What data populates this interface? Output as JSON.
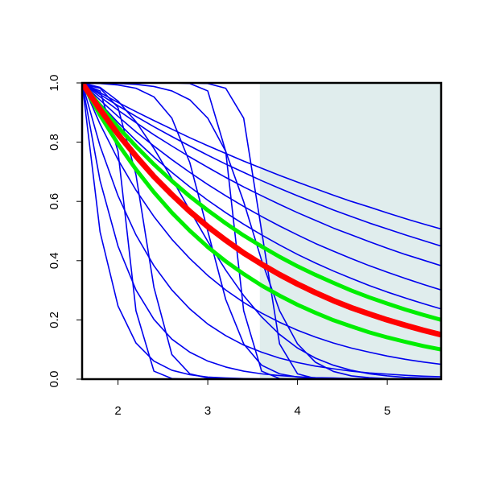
{
  "chart_data": {
    "type": "line",
    "x": [
      1.6,
      1.8,
      2.0,
      2.2,
      2.4,
      2.6,
      2.8,
      3.0,
      3.2,
      3.4,
      3.6,
      3.8,
      4.0,
      4.2,
      4.4,
      4.6,
      4.8,
      5.0,
      5.2,
      5.4,
      5.6
    ],
    "xlim": [
      1.6,
      5.6
    ],
    "ylim": [
      0,
      1
    ],
    "xticks": [
      2,
      3,
      4,
      5
    ],
    "yticks": [
      {
        "value": 0,
        "label": "0.0"
      },
      0.2,
      0.4,
      0.6,
      0.8,
      {
        "value": 1,
        "label": "1.0"
      }
    ],
    "shaded_region": {
      "x": [
        3.58,
        5.6
      ],
      "color": "#e0eded"
    },
    "series": [
      {
        "color": "#0000ee",
        "line_width": 1.6,
        "values": [
          1,
          0.967,
          0.934,
          0.903,
          0.873,
          0.844,
          0.815,
          0.788,
          0.762,
          0.736,
          0.712,
          0.688,
          0.665,
          0.643,
          0.621,
          0.6,
          0.581,
          0.561,
          0.542,
          0.524,
          0.507
        ]
      },
      {
        "color": "#0000ee",
        "line_width": 1.6,
        "values": [
          1,
          0.961,
          0.923,
          0.887,
          0.852,
          0.819,
          0.787,
          0.756,
          0.726,
          0.698,
          0.67,
          0.644,
          0.619,
          0.595,
          0.571,
          0.549,
          0.527,
          0.507,
          0.487,
          0.468,
          0.449
        ]
      },
      {
        "color": "#0000ee",
        "line_width": 1.6,
        "values": [
          1,
          0.953,
          0.908,
          0.866,
          0.825,
          0.787,
          0.75,
          0.715,
          0.681,
          0.649,
          0.619,
          0.59,
          0.562,
          0.536,
          0.51,
          0.487,
          0.464,
          0.442,
          0.421,
          0.402,
          0.383
        ]
      },
      {
        "color": "#0000ee",
        "line_width": 1.6,
        "values": [
          1,
          0.942,
          0.887,
          0.835,
          0.787,
          0.741,
          0.698,
          0.657,
          0.619,
          0.583,
          0.549,
          0.517,
          0.487,
          0.458,
          0.432,
          0.407,
          0.383,
          0.361,
          0.34,
          0.32,
          0.301
        ]
      },
      {
        "color": "#0000ee",
        "line_width": 1.6,
        "values": [
          1,
          0.931,
          0.866,
          0.806,
          0.75,
          0.698,
          0.649,
          0.604,
          0.562,
          0.523,
          0.487,
          0.453,
          0.421,
          0.392,
          0.365,
          0.34,
          0.316,
          0.294,
          0.274,
          0.255,
          0.237
        ]
      },
      {
        "color": "#0000ee",
        "line_width": 1.6,
        "values": [
          1,
          0.861,
          0.741,
          0.638,
          0.549,
          0.472,
          0.407,
          0.35,
          0.301,
          0.259,
          0.223,
          0.192,
          0.165,
          0.142,
          0.122,
          0.105,
          0.091,
          0.078,
          0.067,
          0.058,
          0.05
        ]
      },
      {
        "color": "#0000ee",
        "line_width": 1.6,
        "values": [
          1,
          0.787,
          0.619,
          0.487,
          0.383,
          0.301,
          0.237,
          0.186,
          0.147,
          0.115,
          0.091,
          0.071,
          0.056,
          0.044,
          0.035,
          0.027,
          0.021,
          0.017,
          0.013,
          0.01,
          0.008
        ]
      },
      {
        "color": "#0000ee",
        "line_width": 1.6,
        "values": [
          1,
          0.67,
          0.449,
          0.301,
          0.202,
          0.135,
          0.091,
          0.061,
          0.041,
          0.027,
          0.018,
          0.012,
          0.008,
          0.005,
          0.004,
          0.002,
          0.002,
          0.001,
          0.001,
          0,
          0
        ]
      },
      {
        "color": "#0000ee",
        "line_width": 1.6,
        "values": [
          1,
          0.497,
          0.247,
          0.122,
          0.061,
          0.03,
          0.015,
          0.007,
          0.004,
          0.002,
          0.001,
          0,
          0,
          0,
          0,
          0,
          0,
          0,
          0,
          0,
          0
        ]
      },
      {
        "color": "#0000ee",
        "line_width": 1.6,
        "values": [
          0.998,
          0.973,
          0.769,
          0.231,
          0.027,
          0.002,
          0,
          0,
          0,
          0,
          0,
          0,
          0,
          0,
          0,
          0,
          0,
          0,
          0,
          0,
          0
        ]
      },
      {
        "color": "#0000ee",
        "line_width": 1.6,
        "values": [
          0.996,
          0.982,
          0.917,
          0.69,
          0.31,
          0.083,
          0.018,
          0.004,
          0.001,
          0,
          0,
          0,
          0,
          0,
          0,
          0,
          0,
          0,
          0,
          0,
          0
        ]
      },
      {
        "color": "#0000ee",
        "line_width": 1.6,
        "values": [
          1,
          1,
          1,
          1,
          1,
          1,
          0.998,
          0.973,
          0.769,
          0.231,
          0.027,
          0.002,
          0,
          0,
          0,
          0,
          0,
          0,
          0,
          0,
          0
        ]
      },
      {
        "color": "#0000ee",
        "line_width": 1.6,
        "values": [
          1,
          1,
          1,
          1,
          1,
          1,
          1,
          0.998,
          0.982,
          0.881,
          0.5,
          0.119,
          0.018,
          0.002,
          0,
          0,
          0,
          0,
          0,
          0,
          0
        ]
      },
      {
        "color": "#0000ee",
        "line_width": 1.6,
        "values": [
          0.999,
          0.998,
          0.993,
          0.982,
          0.953,
          0.881,
          0.731,
          0.5,
          0.269,
          0.119,
          0.047,
          0.018,
          0.007,
          0.002,
          0.001,
          0,
          0,
          0,
          0,
          0,
          0
        ]
      },
      {
        "color": "#0000ee",
        "line_width": 1.6,
        "values": [
          0.999,
          0.999,
          0.998,
          0.995,
          0.988,
          0.973,
          0.943,
          0.881,
          0.769,
          0.599,
          0.401,
          0.231,
          0.119,
          0.057,
          0.026,
          0.011,
          0.005,
          0.002,
          0.001,
          0,
          0
        ]
      },
      {
        "color": "#0000ee",
        "line_width": 1.6,
        "values": [
          1,
          0.985,
          0.939,
          0.869,
          0.779,
          0.677,
          0.57,
          0.465,
          0.368,
          0.282,
          0.21,
          0.151,
          0.105,
          0.071,
          0.047,
          0.03,
          0.018,
          0.011,
          0.006,
          0.004,
          0.002
        ]
      },
      {
        "color": "#00ee00",
        "line_width": 5,
        "values": [
          1,
          0.923,
          0.851,
          0.786,
          0.725,
          0.669,
          0.617,
          0.57,
          0.526,
          0.485,
          0.448,
          0.413,
          0.381,
          0.352,
          0.325,
          0.299,
          0.276,
          0.255,
          0.235,
          0.217,
          0.2
        ]
      },
      {
        "color": "#00ee00",
        "line_width": 5,
        "values": [
          1,
          0.891,
          0.794,
          0.708,
          0.631,
          0.562,
          0.501,
          0.446,
          0.398,
          0.355,
          0.316,
          0.282,
          0.251,
          0.224,
          0.199,
          0.178,
          0.158,
          0.141,
          0.126,
          0.112,
          0.1
        ]
      },
      {
        "color": "#ff0000",
        "line_width": 7,
        "values": [
          1,
          0.91,
          0.827,
          0.753,
          0.684,
          0.623,
          0.566,
          0.515,
          0.469,
          0.426,
          0.388,
          0.353,
          0.321,
          0.292,
          0.265,
          0.241,
          0.22,
          0.2,
          0.182,
          0.165,
          0.15
        ]
      }
    ]
  }
}
